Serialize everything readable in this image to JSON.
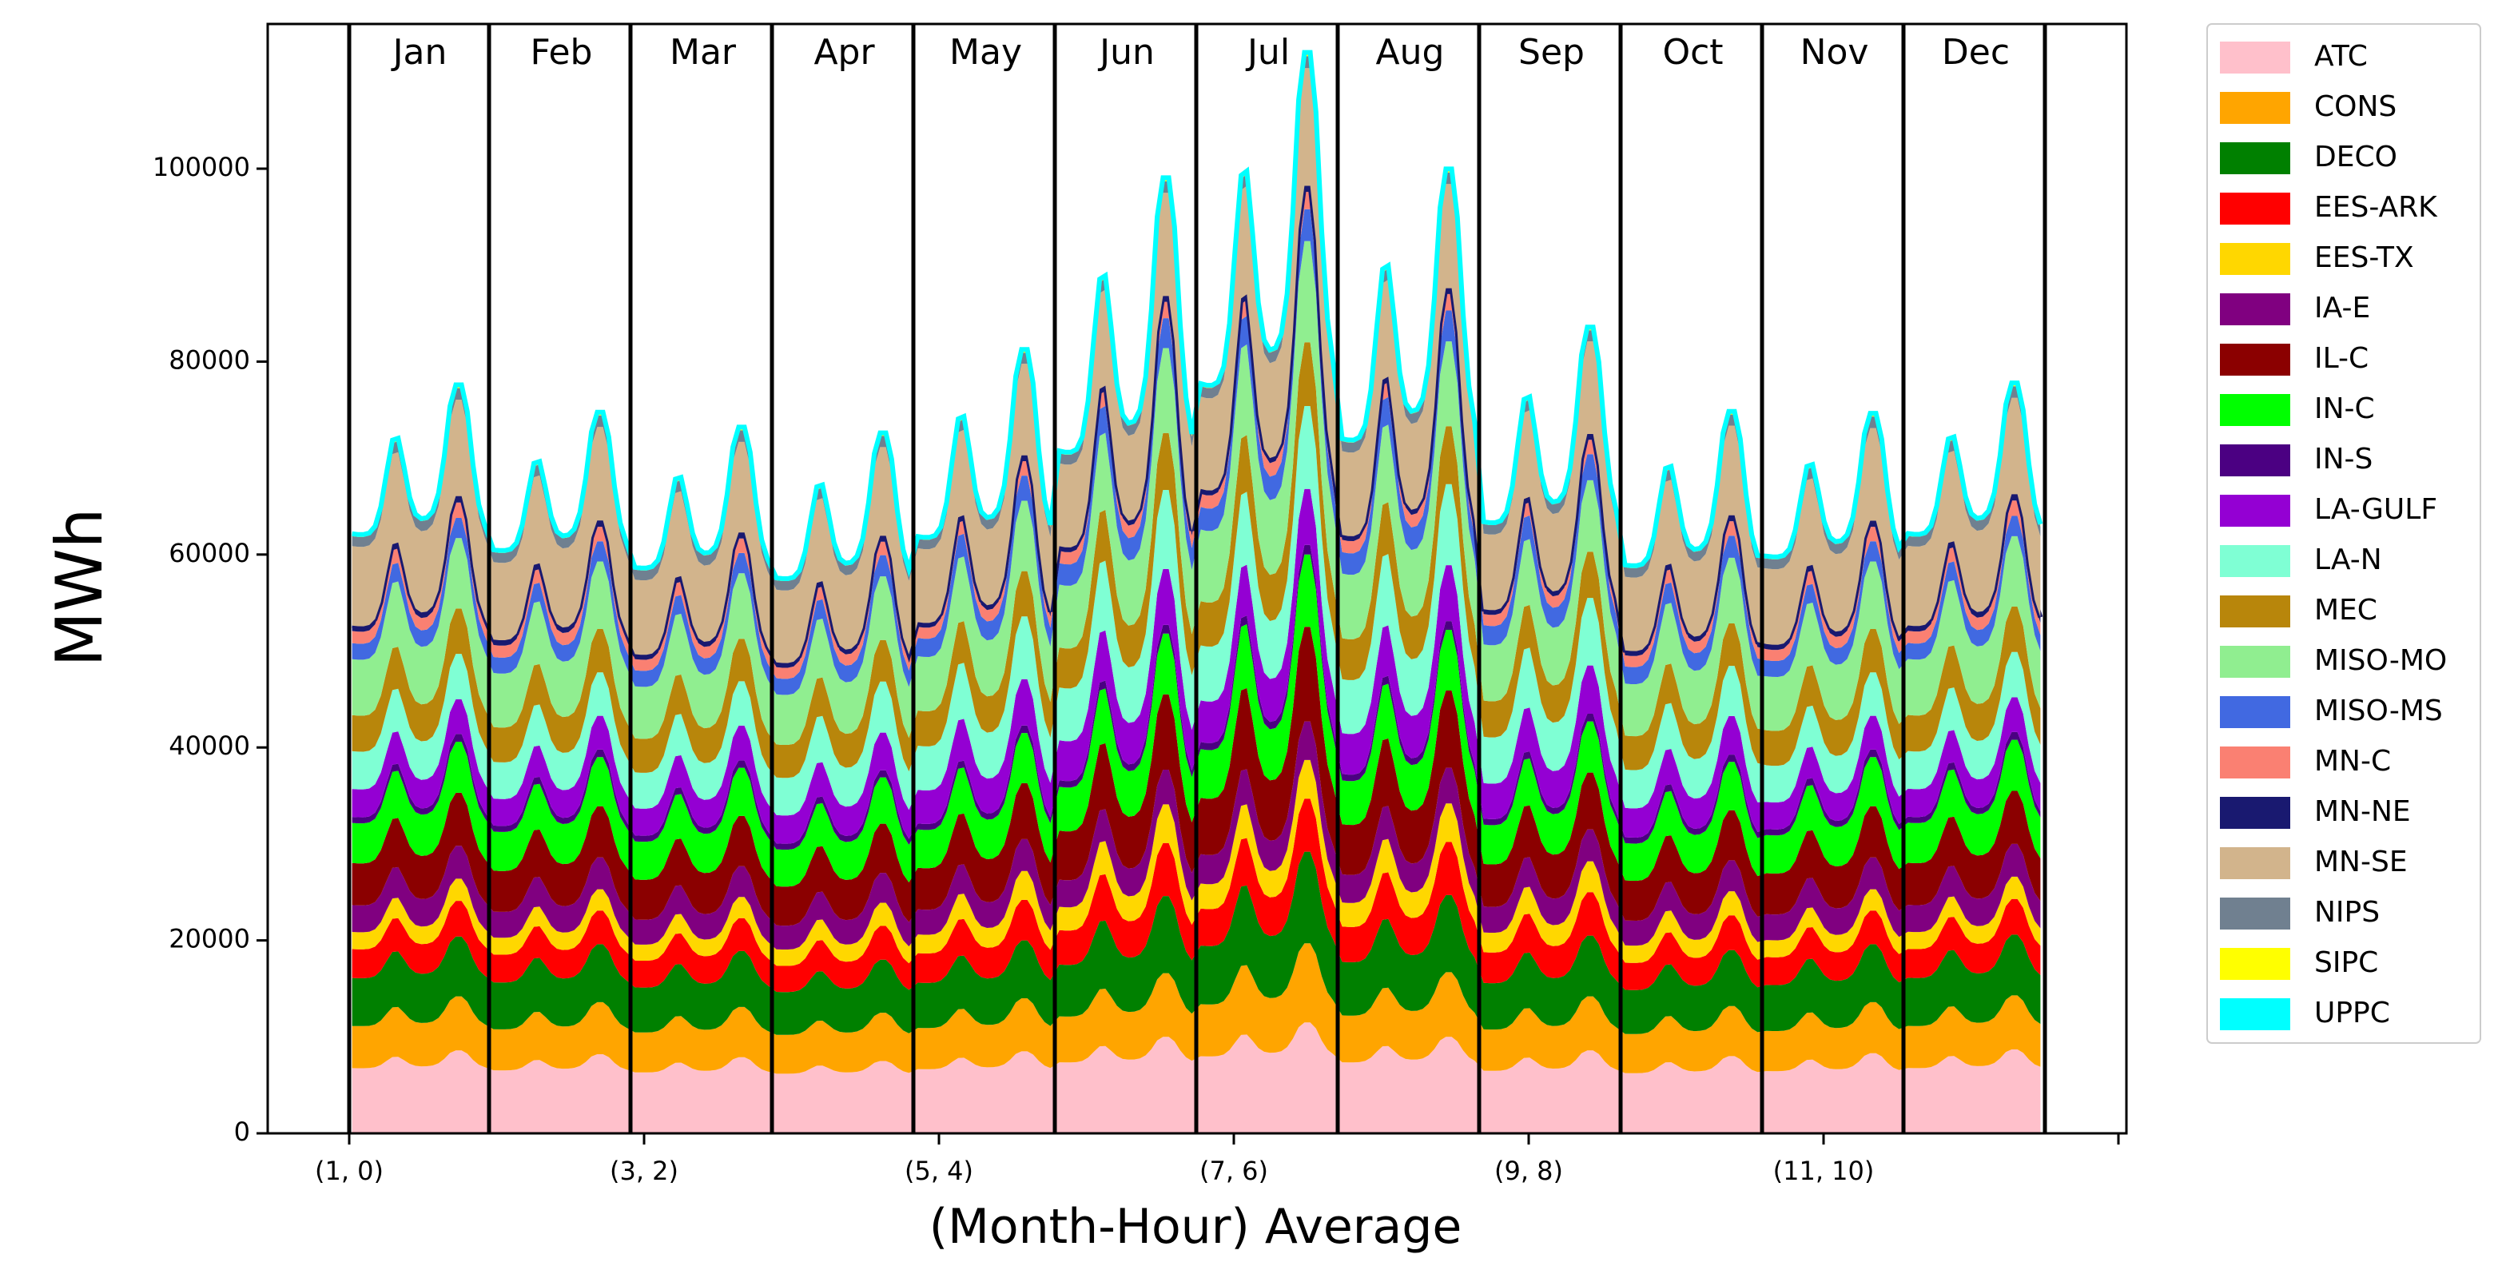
{
  "chart_data": {
    "type": "area",
    "stacked": true,
    "xlabel": "(Month-Hour) Average",
    "ylabel": "MWh",
    "ylim": [
      0,
      115000
    ],
    "yticks": [
      0,
      20000,
      40000,
      60000,
      80000,
      100000
    ],
    "xtick_labels": [
      "(1, 0)",
      "(3, 2)",
      "(5, 4)",
      "(7, 6)",
      "(9, 8)",
      "(11, 10)"
    ],
    "months": [
      "Jan",
      "Feb",
      "Mar",
      "Apr",
      "May",
      "Jun",
      "Jul",
      "Aug",
      "Sep",
      "Oct",
      "Nov",
      "Dec"
    ],
    "hours_per_month": 24,
    "legend_position": "outside-right",
    "grid": false,
    "series": [
      {
        "name": "ATC",
        "color": "#ffc0cb",
        "month_min": [
          6500,
          6300,
          6100,
          6000,
          6400,
          7000,
          7500,
          7000,
          6200,
          6000,
          6200,
          6500
        ],
        "month_peak": [
          8600,
          8200,
          7900,
          7500,
          8500,
          10000,
          11500,
          10000,
          8600,
          8000,
          8300,
          8700
        ]
      },
      {
        "name": "CONS",
        "color": "#ffa500",
        "month_min": [
          4200,
          4100,
          4000,
          3900,
          4100,
          4500,
          5000,
          4600,
          4100,
          3900,
          4000,
          4200
        ],
        "month_peak": [
          5600,
          5400,
          5200,
          5000,
          5500,
          6600,
          8200,
          6700,
          5600,
          5200,
          5300,
          5600
        ]
      },
      {
        "name": "DECO",
        "color": "#008000",
        "month_min": [
          4800,
          4700,
          4500,
          4300,
          4500,
          5000,
          5600,
          5200,
          4600,
          4400,
          4600,
          4800
        ],
        "month_peak": [
          6200,
          6000,
          5800,
          5500,
          6000,
          8000,
          9500,
          8000,
          6300,
          5800,
          6000,
          6300
        ]
      },
      {
        "name": "EES-ARK",
        "color": "#ff0000",
        "month_min": [
          2900,
          2800,
          2700,
          2600,
          2900,
          3300,
          3600,
          3400,
          3000,
          2700,
          2800,
          2900
        ],
        "month_peak": [
          3700,
          3500,
          3400,
          3500,
          4200,
          5500,
          5500,
          5500,
          4500,
          3600,
          3500,
          3700
        ]
      },
      {
        "name": "EES-TX",
        "color": "#ffd700",
        "month_min": [
          1700,
          1700,
          1600,
          1600,
          1800,
          2200,
          2400,
          2300,
          1900,
          1700,
          1700,
          1700
        ],
        "month_peak": [
          2300,
          2200,
          2200,
          2400,
          3000,
          4000,
          4000,
          4000,
          3200,
          2500,
          2200,
          2300
        ]
      },
      {
        "name": "IA-E",
        "color": "#800080",
        "month_min": [
          2700,
          2600,
          2500,
          2400,
          2500,
          2700,
          2900,
          2800,
          2600,
          2500,
          2600,
          2700
        ],
        "month_peak": [
          3400,
          3300,
          3200,
          3100,
          3300,
          3600,
          4000,
          3700,
          3300,
          3200,
          3300,
          3400
        ]
      },
      {
        "name": "IL-C",
        "color": "#8b0000",
        "month_min": [
          4200,
          4100,
          4000,
          3900,
          4100,
          4700,
          5300,
          4800,
          4200,
          4000,
          4100,
          4200
        ],
        "month_peak": [
          5500,
          5300,
          5200,
          5100,
          5800,
          7800,
          9800,
          8000,
          5900,
          5200,
          5300,
          5500
        ]
      },
      {
        "name": "IN-C",
        "color": "#00ff00",
        "month_min": [
          4000,
          3900,
          3800,
          3700,
          3800,
          4300,
          4700,
          4300,
          3900,
          3700,
          3800,
          4000
        ],
        "month_peak": [
          5300,
          5100,
          5000,
          4800,
          5200,
          6300,
          7500,
          6300,
          5300,
          5000,
          5100,
          5300
        ]
      },
      {
        "name": "IN-S",
        "color": "#4b0082",
        "month_min": [
          600,
          600,
          600,
          600,
          600,
          650,
          700,
          650,
          600,
          600,
          600,
          600
        ],
        "month_peak": [
          800,
          780,
          760,
          740,
          780,
          900,
          1000,
          900,
          800,
          760,
          780,
          800
        ]
      },
      {
        "name": "LA-GULF",
        "color": "#9400d3",
        "month_min": [
          2800,
          2700,
          2700,
          2800,
          3300,
          3900,
          4100,
          4000,
          3500,
          2900,
          2700,
          2800
        ],
        "month_peak": [
          3600,
          3500,
          3600,
          3900,
          4800,
          5800,
          5800,
          5800,
          5000,
          4000,
          3500,
          3600
        ]
      },
      {
        "name": "LA-N",
        "color": "#7fffd4",
        "month_min": [
          3800,
          3700,
          3600,
          3700,
          4300,
          5100,
          5300,
          5200,
          4500,
          3800,
          3700,
          3800
        ],
        "month_peak": [
          4700,
          4500,
          4600,
          5300,
          6500,
          8200,
          8600,
          8400,
          7000,
          5200,
          4500,
          4700
        ]
      },
      {
        "name": "MEC",
        "color": "#b8860b",
        "month_min": [
          3600,
          3500,
          3400,
          3300,
          3500,
          3900,
          4300,
          4000,
          3600,
          3400,
          3500,
          3600
        ],
        "month_peak": [
          4700,
          4500,
          4400,
          4300,
          4700,
          5900,
          6600,
          6000,
          4800,
          4400,
          4500,
          4700
        ]
      },
      {
        "name": "MISO-MO",
        "color": "#90ee90",
        "month_min": [
          5600,
          5400,
          5200,
          5000,
          5400,
          6200,
          7000,
          6400,
          5600,
          5200,
          5400,
          5600
        ],
        "month_peak": [
          7300,
          7000,
          6800,
          6600,
          7300,
          8800,
          10500,
          8800,
          7400,
          6800,
          7000,
          7300
        ]
      },
      {
        "name": "MISO-MS",
        "color": "#4169e1",
        "month_min": [
          1600,
          1600,
          1600,
          1600,
          1800,
          2100,
          2200,
          2100,
          1900,
          1700,
          1600,
          1600
        ],
        "month_peak": [
          2100,
          2100,
          2100,
          2200,
          2600,
          3100,
          3300,
          3200,
          2700,
          2300,
          2100,
          2100
        ]
      },
      {
        "name": "MN-C",
        "color": "#fa8072",
        "month_min": [
          1200,
          1200,
          1100,
          1100,
          1100,
          1200,
          1300,
          1200,
          1100,
          1100,
          1100,
          1200
        ],
        "month_peak": [
          1600,
          1500,
          1500,
          1400,
          1500,
          1700,
          1800,
          1700,
          1500,
          1500,
          1500,
          1600
        ]
      },
      {
        "name": "MN-NE",
        "color": "#191970",
        "month_min": [
          550,
          550,
          500,
          480,
          470,
          480,
          500,
          490,
          480,
          500,
          520,
          550
        ],
        "month_peak": [
          650,
          640,
          620,
          600,
          600,
          600,
          620,
          610,
          600,
          610,
          630,
          650
        ]
      },
      {
        "name": "MN-SE",
        "color": "#d2b48c",
        "month_min": [
          8000,
          7800,
          7500,
          7300,
          7400,
          8300,
          9200,
          8400,
          7600,
          7400,
          7600,
          8000
        ],
        "month_peak": [
          10000,
          9700,
          9400,
          9200,
          9500,
          10700,
          12200,
          10800,
          9600,
          9300,
          9600,
          10000
        ]
      },
      {
        "name": "NIPS",
        "color": "#708090",
        "month_min": [
          1000,
          1000,
          1000,
          950,
          950,
          1000,
          1050,
          1000,
          950,
          950,
          1000,
          1000
        ],
        "month_peak": [
          1200,
          1200,
          1200,
          1150,
          1150,
          1200,
          1250,
          1200,
          1150,
          1150,
          1200,
          1200
        ]
      },
      {
        "name": "SIPC",
        "color": "#ffff00",
        "month_min": [
          150,
          150,
          150,
          150,
          150,
          160,
          170,
          160,
          150,
          150,
          150,
          150
        ],
        "month_peak": [
          220,
          210,
          210,
          200,
          210,
          240,
          260,
          240,
          210,
          200,
          210,
          220
        ]
      },
      {
        "name": "UPPC",
        "color": "#00ffff",
        "month_min": [
          90,
          90,
          90,
          90,
          90,
          90,
          90,
          90,
          90,
          90,
          90,
          90
        ],
        "month_peak": [
          120,
          120,
          120,
          120,
          120,
          120,
          120,
          120,
          120,
          120,
          120,
          120
        ]
      }
    ]
  }
}
